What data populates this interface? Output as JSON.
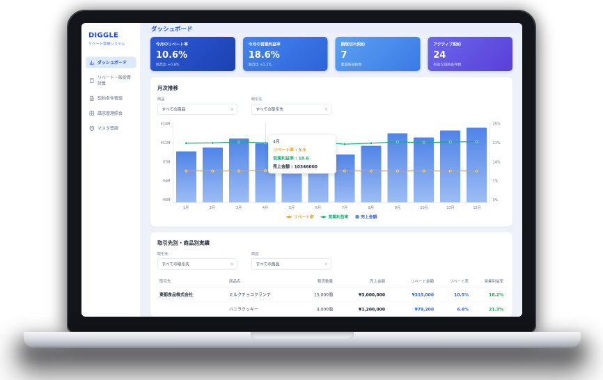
{
  "app": {
    "brand": "DIGGLE",
    "brand_subtitle": "リベート管理システム",
    "page_title": "ダッシュボード"
  },
  "sidebar": {
    "items": [
      {
        "label": "ダッシュボード",
        "icon": "dashboard-icon",
        "active": true
      },
      {
        "label": "リベート・販促費計算",
        "icon": "calculator-icon",
        "active": false
      },
      {
        "label": "契約条件管理",
        "icon": "document-icon",
        "active": false
      },
      {
        "label": "請求管理照会",
        "icon": "invoice-icon",
        "active": false
      },
      {
        "label": "マスタ登録",
        "icon": "database-icon",
        "active": false
      }
    ]
  },
  "kpi_cards": [
    {
      "label": "今月のリベート率",
      "value": "10.6%",
      "sub": "前月比 +0.8%",
      "gradient": [
        "#2e5bd8",
        "#1c41b0"
      ]
    },
    {
      "label": "今月の営業利益率",
      "value": "18.6%",
      "sub": "前月比 +1.2%",
      "gradient": [
        "#4285ee",
        "#2f63d8"
      ]
    },
    {
      "label": "期限切れ契約",
      "value": "7",
      "sub": "要更新契約数",
      "gradient": [
        "#5aa2f2",
        "#3b79e6"
      ]
    },
    {
      "label": "アクティブ契約",
      "value": "24",
      "sub": "有効な契約条件数",
      "gradient": [
        "#6a67ec",
        "#5a3fd8"
      ]
    }
  ],
  "monthly_panel": {
    "title": "月次推移",
    "filters": [
      {
        "label": "商品",
        "value": "すべての商品"
      },
      {
        "label": "取引先",
        "value": "すべての取引先"
      }
    ]
  },
  "chart_data": {
    "type": "bar+line combo",
    "categories": [
      "1月",
      "2月",
      "3月",
      "4月",
      "5月",
      "6月",
      "7月",
      "8月",
      "9月",
      "10月",
      "11月",
      "12月"
    ],
    "series": [
      {
        "name": "売上金額",
        "type": "bar",
        "axis": "left",
        "color": "#5b8cee",
        "values": [
          8900000,
          9600000,
          11200000,
          10346000,
          9500000,
          11700000,
          8400000,
          9900000,
          12100000,
          11400000,
          12600000,
          13100000
        ]
      },
      {
        "name": "リベート率",
        "type": "line",
        "axis": "right",
        "color": "#f59e0b",
        "values": [
          9.8,
          9.8,
          9.8,
          9.9,
          9.8,
          9.9,
          9.8,
          9.8,
          9.8,
          9.8,
          9.8,
          9.8
        ]
      },
      {
        "name": "営業利益率",
        "type": "line",
        "axis": "right",
        "color": "#12b176",
        "values": [
          18.5,
          18.6,
          18.9,
          18.6,
          18.7,
          18.8,
          18.2,
          18.5,
          18.9,
          18.7,
          18.9,
          19.0
        ]
      }
    ],
    "left_axis": {
      "ticks": [
        "¥14M",
        "¥11M",
        "¥7M",
        "¥4M",
        "¥0M"
      ],
      "max": 14000000,
      "min": 0
    },
    "right_axis": {
      "ticks": [
        "25%",
        "21%",
        "14%",
        "7%",
        "0%"
      ],
      "max": 25,
      "min": 0
    },
    "grid": true,
    "legend_position": "bottom",
    "tooltip": {
      "month": "4月",
      "items": [
        {
          "text": "リベート率 : 9.9",
          "color": "#f59e0b"
        },
        {
          "text": "営業利益率 : 18.6",
          "color": "#12b176"
        },
        {
          "text": "売上金額 : 10346000",
          "color": "#1f2937"
        }
      ]
    },
    "legend": [
      {
        "label": "リベート率",
        "color": "#f59e0b",
        "marker": "line"
      },
      {
        "label": "営業利益率",
        "color": "#12b176",
        "marker": "line"
      },
      {
        "label": "売上金額",
        "color": "#5b8cee",
        "marker": "square",
        "text_color": "#3b5bdb"
      }
    ]
  },
  "results_panel": {
    "title": "取引先別・商品別実績",
    "filters": [
      {
        "label": "取引先",
        "value": "すべての取引先"
      },
      {
        "label": "商品",
        "value": "すべての商品"
      }
    ],
    "table": {
      "headers": [
        "取引先",
        "商品名",
        "販売数量",
        "売上金額",
        "リベート金額",
        "リベート率",
        "営業利益率"
      ],
      "rows": [
        {
          "partner": "東都食品株式会社",
          "product": "ミルクチョコクランチ",
          "qty": "15,000個",
          "sales": "¥3,000,000",
          "rebate_amount": "¥315,000",
          "rebate_rate": "10.5%",
          "profit_rate": "18.2%"
        },
        {
          "partner": "",
          "product": "バニラクッキー",
          "qty": "4,000個",
          "sales": "¥1,200,000",
          "rebate_amount": "¥79,200",
          "rebate_rate": "6.6%",
          "profit_rate": "21.3%"
        }
      ]
    }
  }
}
